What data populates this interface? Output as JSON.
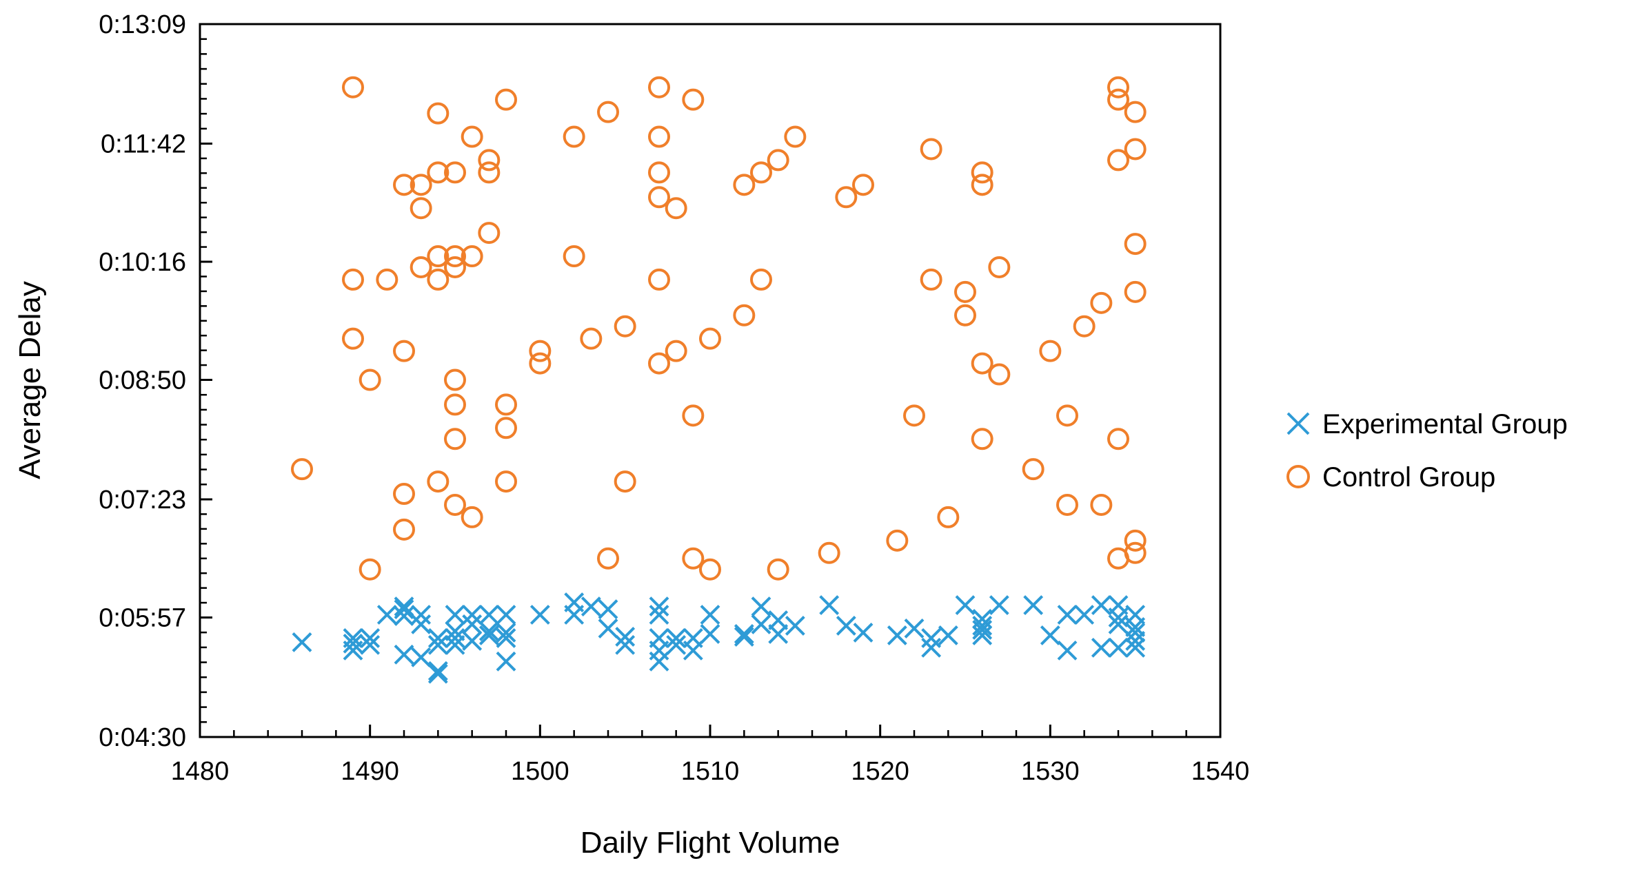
{
  "chart_data": {
    "type": "scatter",
    "title": "",
    "xlabel": "Daily Flight Volume",
    "ylabel": "Average Delay",
    "xlim": [
      1480,
      1540
    ],
    "ylim_seconds": [
      270,
      789
    ],
    "x_ticks": [
      1480,
      1490,
      1500,
      1510,
      1520,
      1530,
      1540
    ],
    "x_tick_labels": [
      "1480",
      "1490",
      "1500",
      "1510",
      "1520",
      "1530",
      "1540"
    ],
    "y_ticks_seconds": [
      270,
      357,
      443,
      530,
      616,
      702,
      789
    ],
    "y_tick_labels": [
      "0:04:30",
      "0:05:57",
      "0:07:23",
      "0:08:50",
      "0:10:16",
      "0:11:42",
      "0:13:09"
    ],
    "grid": false,
    "legend_position": "right",
    "colors": {
      "experimental": "#2e9bd6",
      "control": "#f07f2a",
      "axis": "#000000"
    },
    "series": [
      {
        "name": "Experimental Group",
        "marker": "x",
        "color": "#2e9bd6",
        "points": [
          [
            1486,
            339
          ],
          [
            1489,
            338
          ],
          [
            1489,
            342
          ],
          [
            1489,
            333
          ],
          [
            1490,
            342
          ],
          [
            1490,
            337
          ],
          [
            1491,
            359
          ],
          [
            1492,
            363
          ],
          [
            1492,
            365
          ],
          [
            1492,
            358
          ],
          [
            1492,
            330
          ],
          [
            1493,
            359
          ],
          [
            1493,
            352
          ],
          [
            1493,
            328
          ],
          [
            1494,
            342
          ],
          [
            1494,
            337
          ],
          [
            1494,
            318
          ],
          [
            1494,
            316
          ],
          [
            1495,
            359
          ],
          [
            1495,
            347
          ],
          [
            1495,
            342
          ],
          [
            1495,
            337
          ],
          [
            1496,
            359
          ],
          [
            1496,
            352
          ],
          [
            1496,
            340
          ],
          [
            1497,
            359
          ],
          [
            1497,
            347
          ],
          [
            1497,
            344
          ],
          [
            1498,
            359
          ],
          [
            1498,
            346
          ],
          [
            1498,
            342
          ],
          [
            1498,
            325
          ],
          [
            1500,
            359
          ],
          [
            1502,
            368
          ],
          [
            1502,
            359
          ],
          [
            1503,
            365
          ],
          [
            1504,
            363
          ],
          [
            1504,
            349
          ],
          [
            1505,
            343
          ],
          [
            1505,
            337
          ],
          [
            1507,
            365
          ],
          [
            1507,
            359
          ],
          [
            1507,
            342
          ],
          [
            1507,
            333
          ],
          [
            1507,
            325
          ],
          [
            1508,
            337
          ],
          [
            1508,
            342
          ],
          [
            1509,
            342
          ],
          [
            1509,
            333
          ],
          [
            1510,
            359
          ],
          [
            1510,
            345
          ],
          [
            1512,
            345
          ],
          [
            1512,
            343
          ],
          [
            1513,
            352
          ],
          [
            1513,
            365
          ],
          [
            1514,
            355
          ],
          [
            1514,
            345
          ],
          [
            1515,
            351
          ],
          [
            1517,
            366
          ],
          [
            1518,
            351
          ],
          [
            1519,
            346
          ],
          [
            1521,
            344
          ],
          [
            1522,
            349
          ],
          [
            1523,
            342
          ],
          [
            1523,
            335
          ],
          [
            1524,
            344
          ],
          [
            1525,
            366
          ],
          [
            1526,
            356
          ],
          [
            1526,
            351
          ],
          [
            1526,
            348
          ],
          [
            1526,
            344
          ],
          [
            1527,
            366
          ],
          [
            1529,
            366
          ],
          [
            1530,
            344
          ],
          [
            1531,
            359
          ],
          [
            1531,
            333
          ],
          [
            1532,
            359
          ],
          [
            1533,
            366
          ],
          [
            1533,
            335
          ],
          [
            1534,
            366
          ],
          [
            1534,
            357
          ],
          [
            1534,
            352
          ],
          [
            1534,
            335
          ],
          [
            1535,
            359
          ],
          [
            1535,
            350
          ],
          [
            1535,
            346
          ],
          [
            1535,
            340
          ],
          [
            1535,
            335
          ]
        ]
      },
      {
        "name": "Control Group",
        "marker": "o",
        "color": "#f07f2a",
        "points": [
          [
            1486,
            465
          ],
          [
            1489,
            743
          ],
          [
            1489,
            603
          ],
          [
            1489,
            560
          ],
          [
            1490,
            530
          ],
          [
            1490,
            392
          ],
          [
            1491,
            603
          ],
          [
            1492,
            672
          ],
          [
            1492,
            551
          ],
          [
            1492,
            447
          ],
          [
            1492,
            421
          ],
          [
            1493,
            672
          ],
          [
            1493,
            655
          ],
          [
            1493,
            612
          ],
          [
            1494,
            724
          ],
          [
            1494,
            681
          ],
          [
            1494,
            620
          ],
          [
            1494,
            603
          ],
          [
            1494,
            456
          ],
          [
            1495,
            681
          ],
          [
            1495,
            620
          ],
          [
            1495,
            612
          ],
          [
            1495,
            530
          ],
          [
            1495,
            512
          ],
          [
            1495,
            487
          ],
          [
            1495,
            439
          ],
          [
            1496,
            707
          ],
          [
            1496,
            620
          ],
          [
            1496,
            430
          ],
          [
            1497,
            690
          ],
          [
            1497,
            681
          ],
          [
            1497,
            637
          ],
          [
            1498,
            734
          ],
          [
            1498,
            512
          ],
          [
            1498,
            495
          ],
          [
            1498,
            456
          ],
          [
            1500,
            551
          ],
          [
            1500,
            542
          ],
          [
            1502,
            707
          ],
          [
            1502,
            620
          ],
          [
            1503,
            560
          ],
          [
            1504,
            725
          ],
          [
            1504,
            400
          ],
          [
            1505,
            569
          ],
          [
            1505,
            456
          ],
          [
            1507,
            743
          ],
          [
            1507,
            707
          ],
          [
            1507,
            681
          ],
          [
            1507,
            663
          ],
          [
            1507,
            603
          ],
          [
            1507,
            542
          ],
          [
            1508,
            655
          ],
          [
            1508,
            551
          ],
          [
            1509,
            734
          ],
          [
            1509,
            504
          ],
          [
            1509,
            400
          ],
          [
            1510,
            560
          ],
          [
            1510,
            392
          ],
          [
            1512,
            672
          ],
          [
            1512,
            577
          ],
          [
            1513,
            681
          ],
          [
            1513,
            603
          ],
          [
            1514,
            690
          ],
          [
            1514,
            392
          ],
          [
            1515,
            707
          ],
          [
            1517,
            404
          ],
          [
            1518,
            663
          ],
          [
            1519,
            672
          ],
          [
            1521,
            413
          ],
          [
            1522,
            504
          ],
          [
            1523,
            698
          ],
          [
            1523,
            603
          ],
          [
            1524,
            430
          ],
          [
            1525,
            594
          ],
          [
            1525,
            577
          ],
          [
            1526,
            681
          ],
          [
            1526,
            672
          ],
          [
            1526,
            542
          ],
          [
            1526,
            487
          ],
          [
            1527,
            612
          ],
          [
            1527,
            534
          ],
          [
            1529,
            465
          ],
          [
            1530,
            551
          ],
          [
            1531,
            504
          ],
          [
            1531,
            439
          ],
          [
            1532,
            569
          ],
          [
            1533,
            586
          ],
          [
            1533,
            439
          ],
          [
            1534,
            743
          ],
          [
            1534,
            734
          ],
          [
            1534,
            690
          ],
          [
            1534,
            487
          ],
          [
            1534,
            400
          ],
          [
            1535,
            725
          ],
          [
            1535,
            698
          ],
          [
            1535,
            629
          ],
          [
            1535,
            594
          ],
          [
            1535,
            413
          ],
          [
            1535,
            404
          ]
        ]
      }
    ]
  }
}
